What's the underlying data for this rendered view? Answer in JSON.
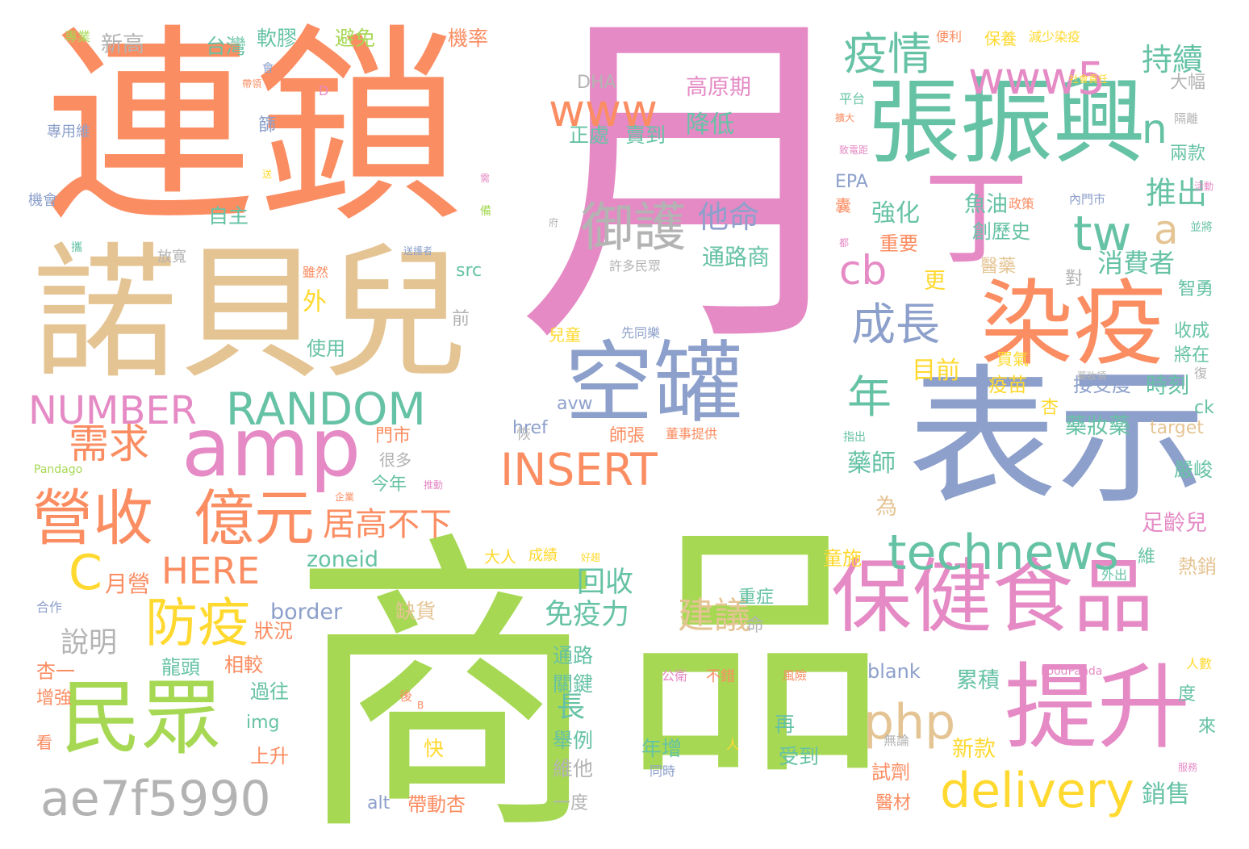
{
  "palette": {
    "pink": "#e58ac5",
    "orange": "#fb8d62",
    "green": "#66c2a5",
    "blue": "#8da0cb",
    "lime": "#a6d854",
    "yellow": "#ffd92f",
    "tan": "#e5c494",
    "gray": "#b3b3b3"
  },
  "words": {
    "yue": "月",
    "shang": "商",
    "pin": "品",
    "lian_suo": "連鎖",
    "nuo_bei_er": "諾貝兒",
    "biao_shi": "表示",
    "zhang_zhen_xing": "張振興",
    "ran_yi": "染疫",
    "bao_jian": "保健食品",
    "ti_sheng": "提升",
    "kong_guan": "空罐",
    "min_zhong": "民眾",
    "amp": "amp",
    "www5": "www5",
    "www": "www",
    "yi_qing": "疫情",
    "ding": "丁",
    "tw": "tw",
    "random": "RANDOM",
    "number": "NUMBER",
    "insert": "INSERT",
    "technews": "technews",
    "delivery": "delivery",
    "php": "php",
    "ae7f5990": "ae7f5990",
    "ying_shou": "營收",
    "yi_yuan": "億元",
    "here": "HERE",
    "fang_yi": "防疫",
    "c": "C",
    "cb": "cb",
    "cheng_zhang": "成長",
    "nian": "年",
    "yu_hu": "御護",
    "xu_qiu": "需求",
    "ju_gao": "居高不下",
    "mian_yi_li": "免疫力",
    "jian_yi": "建議",
    "hui_shou": "回收",
    "n": "n",
    "a": "a",
    "chi_xu": "持續",
    "tui_chu": "推出",
    "xiao_fei_zhe": "消費者",
    "yue_ying": "月營",
    "shuo_ming": "說明",
    "zoneid": "zoneid",
    "border": "border",
    "ta_ming": "他命",
    "tong_lu_shang": "通路商",
    "jiang_di": "降低",
    "gao_yuan_qi": "高原期",
    "zheng_chu": "正處",
    "mai_dao": "賣到",
    "dha": "DHA",
    "tai_wan": "台灣",
    "ruan_jiao": "軟膠",
    "bi_mian": "避免",
    "ji_lu": "機率",
    "xin_gao": "新高",
    "zi_zhu": "自主",
    "qiang_hua": "強化",
    "zhong_yao": "重要",
    "yu_you": "魚油",
    "chuang_li_shi": "創歷史",
    "yi_yao": "醫藥",
    "geng": "更",
    "mu_qian": "目前",
    "yi_miao": "疫苗",
    "jie_shou_du": "接受度",
    "shi_ke": "時刻",
    "yao_zhuang_yao": "藥妝藥",
    "yan_jun": "嚴峻",
    "zu_ling_er": "足齡兒",
    "re_xiao": "熱銷",
    "yao_shi": "藥師",
    "wei": "為",
    "tong_shi": "童施",
    "xin_kuan": "新款",
    "lei_ji": "累積",
    "xiao_shou": "銷售",
    "shi_ji": "試劑",
    "yi_cai": "醫材",
    "blank": "blank",
    "alt": "alt",
    "dai_dong_xing": "帶動杏",
    "yi_du": "一度",
    "wei_ta": "維他",
    "ju_li": "舉例",
    "chang": "長",
    "tong_lu": "通路",
    "guan_jian": "關鍵",
    "nian_zeng": "年增",
    "shou_dao": "受到",
    "zai": "再",
    "kuai": "快",
    "que_huo": "缺貨",
    "zhong_zheng": "重症",
    "ming": "命",
    "img": "img",
    "shang_sheng": "上升",
    "guo_wang": "過往",
    "xiang_jiao": "相較",
    "long_tou": "龍頭",
    "zhuang_kuang": "狀況",
    "xing_yi": "杏一",
    "zeng_qiang": "增強",
    "kan": "看",
    "href": "href",
    "src": "src",
    "men_shi": "門市",
    "jin_nian": "今年",
    "hen_duo": "很多",
    "shi_yong": "使用",
    "wai": "外",
    "qian": "前",
    "avw": "avw",
    "shi_zhang": "師張",
    "dong_shi_ti_gong": "董事提供",
    "tong_lu_shang2": "通路商",
    "xu_duo_min_zhong": "許多民眾",
    "da_ren": "大人",
    "cheng_ji": "成績",
    "er_tong": "兒童",
    "xian_tong": "先同樂",
    "target": "target",
    "ck": "ck",
    "xing": "杏",
    "jiang_zai": "將在",
    "shou_cheng": "收成",
    "zhi_yong": "智勇",
    "dui": "對",
    "da_fu": "大幅",
    "liang_kuan": "兩款",
    "ge_li": "隔離",
    "epa": "EPA",
    "nang": "囊",
    "mai_qi": "買氣",
    "wei2": "維",
    "du": "度",
    "lai": "來",
    "ren_shu": "人數",
    "food_panda": "FoodPanda",
    "wai_chu": "外出",
    "pandago": "Pandago",
    "he_zuo": "合作",
    "shai": "篩",
    "zhuan_yong_wei": "專用維",
    "ji_hui": "機會",
    "fang_kuan": "放寬",
    "sui_ran": "雖然",
    "song_hu_zhe": "送護者",
    "fu": "府",
    "gong_wei": "公衛",
    "bu_cuo": "不錯",
    "feng_xian": "風險",
    "tong_shi2": "同時",
    "wu_lun": "無論",
    "zhi_chu": "指出",
    "zheng_ce": "政策",
    "nei_men_shi": "內門市",
    "ping_tai": "平台",
    "kuo_da": "擴大",
    "bao_yang": "保養",
    "jian_shao_ran_yi": "減少染疫",
    "bian_li": "便利",
    "she_hui_ze_ren": "社會責任",
    "zhuan_ye": "專業",
    "hui": "會",
    "dai_ling": "帶領",
    "d": "D",
    "song": "送",
    "xu": "需",
    "bei": "備",
    "xie": "攜",
    "tui_dong": "推動",
    "qi_ye": "企業",
    "ren": "人",
    "hou": "後",
    "b": "B",
    "hao_shang": "好趨",
    "hui_fu": "恢",
    "fu2": "復",
    "zhi_dian_ju": "致電距",
    "huo_dong": "活動",
    "bing_jiang": "並將",
    "jian_shao": "減少",
    "zhi_nan": "嗜",
    "fu_wu": "服務",
    "yao_zhuang_ling": "藥妝領",
    "dou": "都",
    "jia": "加"
  }
}
